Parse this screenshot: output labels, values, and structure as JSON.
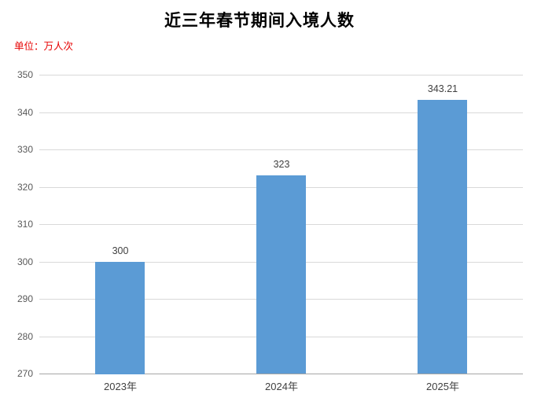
{
  "header": {
    "title": "近三年春节期间入境人数",
    "unit_label": "单位：万人次"
  },
  "colors": {
    "bar": "#5b9bd5",
    "title_text": "#000000",
    "unit_text": "#e60000",
    "grid": "#d9d9d9",
    "axis_line": "#a6a6a6",
    "y_tick_text": "#595959",
    "value_text": "#404040",
    "x_tick_text": "#404040",
    "background": "#ffffff"
  },
  "chart_data": {
    "type": "bar",
    "title": "近三年春节期间入境人数",
    "unit": "万人次",
    "categories": [
      "2023年",
      "2024年",
      "2025年"
    ],
    "values": [
      300,
      323,
      343.21
    ],
    "value_labels": [
      "300",
      "323",
      "343.21"
    ],
    "xlabel": "",
    "ylabel": "",
    "ylim": [
      270,
      350
    ],
    "ytick_step": 10,
    "yticks": [
      270,
      280,
      290,
      300,
      310,
      320,
      330,
      340,
      350
    ],
    "grid": true,
    "legend": false
  }
}
